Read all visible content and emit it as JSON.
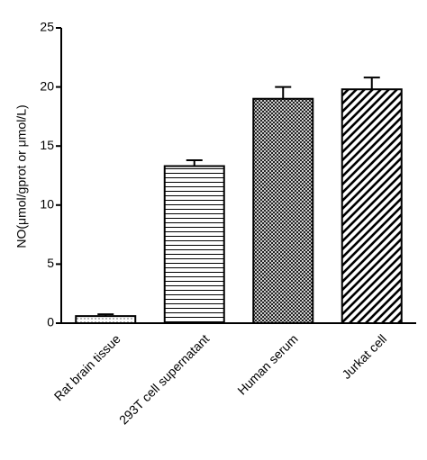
{
  "chart_data": {
    "type": "bar",
    "ylabel": "NO(μmol/gprot or μmol/L)",
    "xlabel": "",
    "ylim": [
      0,
      25
    ],
    "yticks": [
      0,
      5,
      10,
      15,
      20,
      25
    ],
    "grid": false,
    "categories": [
      "Rat brain tissue",
      "293T cell supernatant",
      "Human serum",
      "Jurkat cell"
    ],
    "values": [
      0.6,
      13.3,
      19.0,
      19.8
    ],
    "errors": [
      0.15,
      0.5,
      1.0,
      1.0
    ],
    "patterns": [
      "dots",
      "horizontal-lines",
      "crosshatch",
      "diagonal-stripes"
    ]
  }
}
